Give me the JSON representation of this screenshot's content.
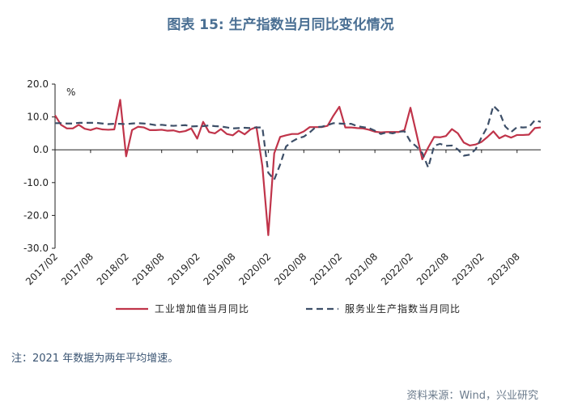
{
  "title": "图表 15: 生产指数当月同比变化情况",
  "note": "注：2021 年数据为两年平均增速。",
  "source": "资料来源：Wind，兴业研究",
  "chart_data": {
    "type": "line",
    "title": "图表 15: 生产指数当月同比变化情况",
    "unit": "%",
    "ylim": [
      -30,
      20
    ],
    "yticks": [
      "20.0",
      "10.0",
      "0.0",
      "-10.0",
      "-20.0",
      "-30.0"
    ],
    "ytick_values": [
      20,
      10,
      0,
      -10,
      -20,
      -30
    ],
    "xtick_labels": [
      "2017/02",
      "2017/08",
      "2018/02",
      "2018/08",
      "2019/02",
      "2019/08",
      "2020/02",
      "2020/08",
      "2021/02",
      "2021/08",
      "2022/02",
      "2022/08",
      "2023/02",
      "2023/08"
    ],
    "xtick_index": [
      0,
      6,
      12,
      18,
      24,
      30,
      36,
      42,
      48,
      54,
      60,
      66,
      72,
      78
    ],
    "n_points": 83,
    "legend_position": "bottom",
    "grid": false,
    "series": [
      {
        "name": "工业增加值当月同比",
        "color": "#c0344a",
        "dash": "solid",
        "values": [
          10.5,
          7.6,
          6.5,
          6.5,
          7.6,
          6.4,
          6.0,
          6.6,
          6.2,
          6.1,
          6.2,
          15.2,
          -2.0,
          6.0,
          7.0,
          6.8,
          6.0,
          6.0,
          6.1,
          5.8,
          5.9,
          5.4,
          5.7,
          6.5,
          3.4,
          8.5,
          5.4,
          5.0,
          6.3,
          4.8,
          4.4,
          5.8,
          4.7,
          6.2,
          6.9,
          -5.0,
          -26.0,
          -1.1,
          3.9,
          4.4,
          4.8,
          4.8,
          5.6,
          6.9,
          6.9,
          6.9,
          7.3,
          10.4,
          13.1,
          6.8,
          6.8,
          6.6,
          6.5,
          6.1,
          5.5,
          5.3,
          5.4,
          5.4,
          5.4,
          6.0,
          12.8,
          5.0,
          -2.9,
          0.7,
          3.9,
          3.8,
          4.2,
          6.3,
          5.0,
          2.2,
          1.3,
          1.6,
          2.4,
          3.9,
          5.6,
          3.5,
          4.4,
          3.7,
          4.5,
          4.5,
          4.6,
          6.6,
          6.8
        ]
      },
      {
        "name": "服务业生产指数当月同比",
        "color": "#3d4f68",
        "dash": "dashed",
        "values": [
          8.1,
          8.1,
          8.0,
          8.0,
          8.2,
          8.2,
          8.2,
          8.2,
          8.0,
          7.8,
          7.9,
          7.9,
          7.8,
          8.0,
          8.1,
          8.0,
          7.8,
          7.5,
          7.6,
          7.4,
          7.3,
          7.4,
          7.5,
          7.1,
          7.2,
          7.2,
          7.4,
          7.2,
          7.1,
          6.8,
          6.5,
          6.6,
          6.7,
          6.6,
          6.8,
          6.8,
          -7.0,
          -9.1,
          -4.5,
          1.0,
          2.5,
          3.5,
          4.0,
          5.3,
          6.9,
          7.0,
          7.5,
          8.1,
          8.0,
          7.9,
          7.9,
          7.2,
          6.9,
          6.6,
          5.8,
          4.8,
          5.3,
          5.0,
          5.5,
          5.6,
          2.5,
          1.0,
          -1.0,
          -5.4,
          1.2,
          1.8,
          1.2,
          1.3,
          0.1,
          -1.8,
          -1.5,
          0.1,
          3.8,
          7.0,
          13.4,
          11.6,
          7.1,
          5.4,
          6.9,
          6.8,
          6.9,
          9.0,
          8.5
        ]
      }
    ]
  }
}
